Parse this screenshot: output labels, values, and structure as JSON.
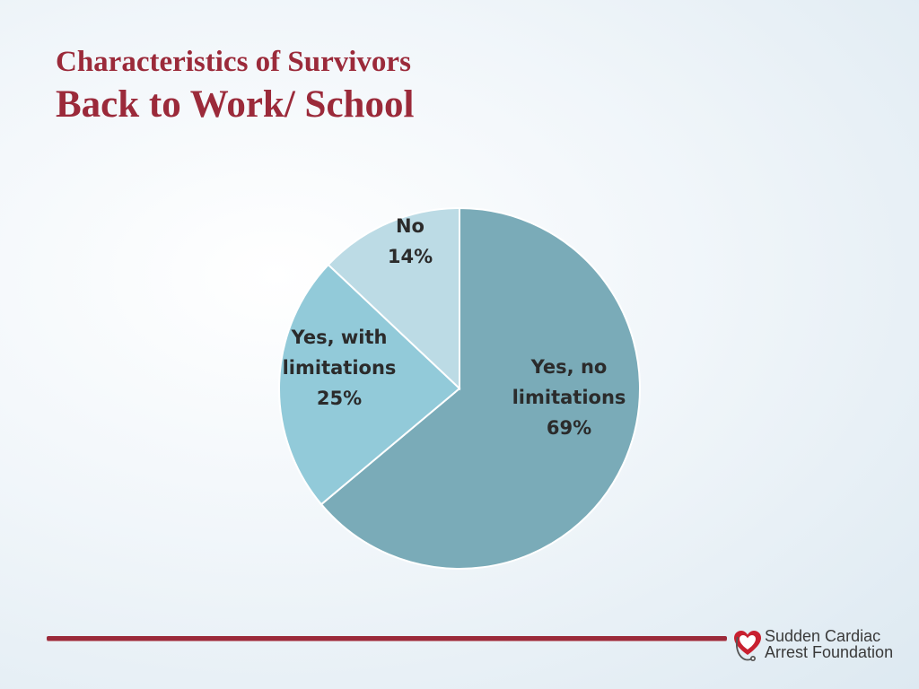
{
  "slide": {
    "title": "Characteristics of Survivors",
    "subtitle": "Back to Work/ School"
  },
  "chart_data": {
    "type": "pie",
    "title": "",
    "slices": [
      {
        "label_lines": [
          "Yes, no",
          "limitations"
        ],
        "percent_label": "69%",
        "value": 69,
        "color": "#7aabb8"
      },
      {
        "label_lines": [
          "Yes, with",
          "limitations"
        ],
        "percent_label": "25%",
        "value": 25,
        "color": "#92cad9"
      },
      {
        "label_lines": [
          "No"
        ],
        "percent_label": "14%",
        "value": 14,
        "color": "#bcdbe5"
      }
    ],
    "start_angle_deg": 0,
    "direction": "clockwise"
  },
  "footer": {
    "logo": {
      "icon": "heart-stethoscope-icon",
      "line1": "Sudden Cardiac",
      "line2": "Arrest Foundation",
      "accent_color": "#c8202f"
    },
    "rule_color": "#9b2a3a"
  }
}
